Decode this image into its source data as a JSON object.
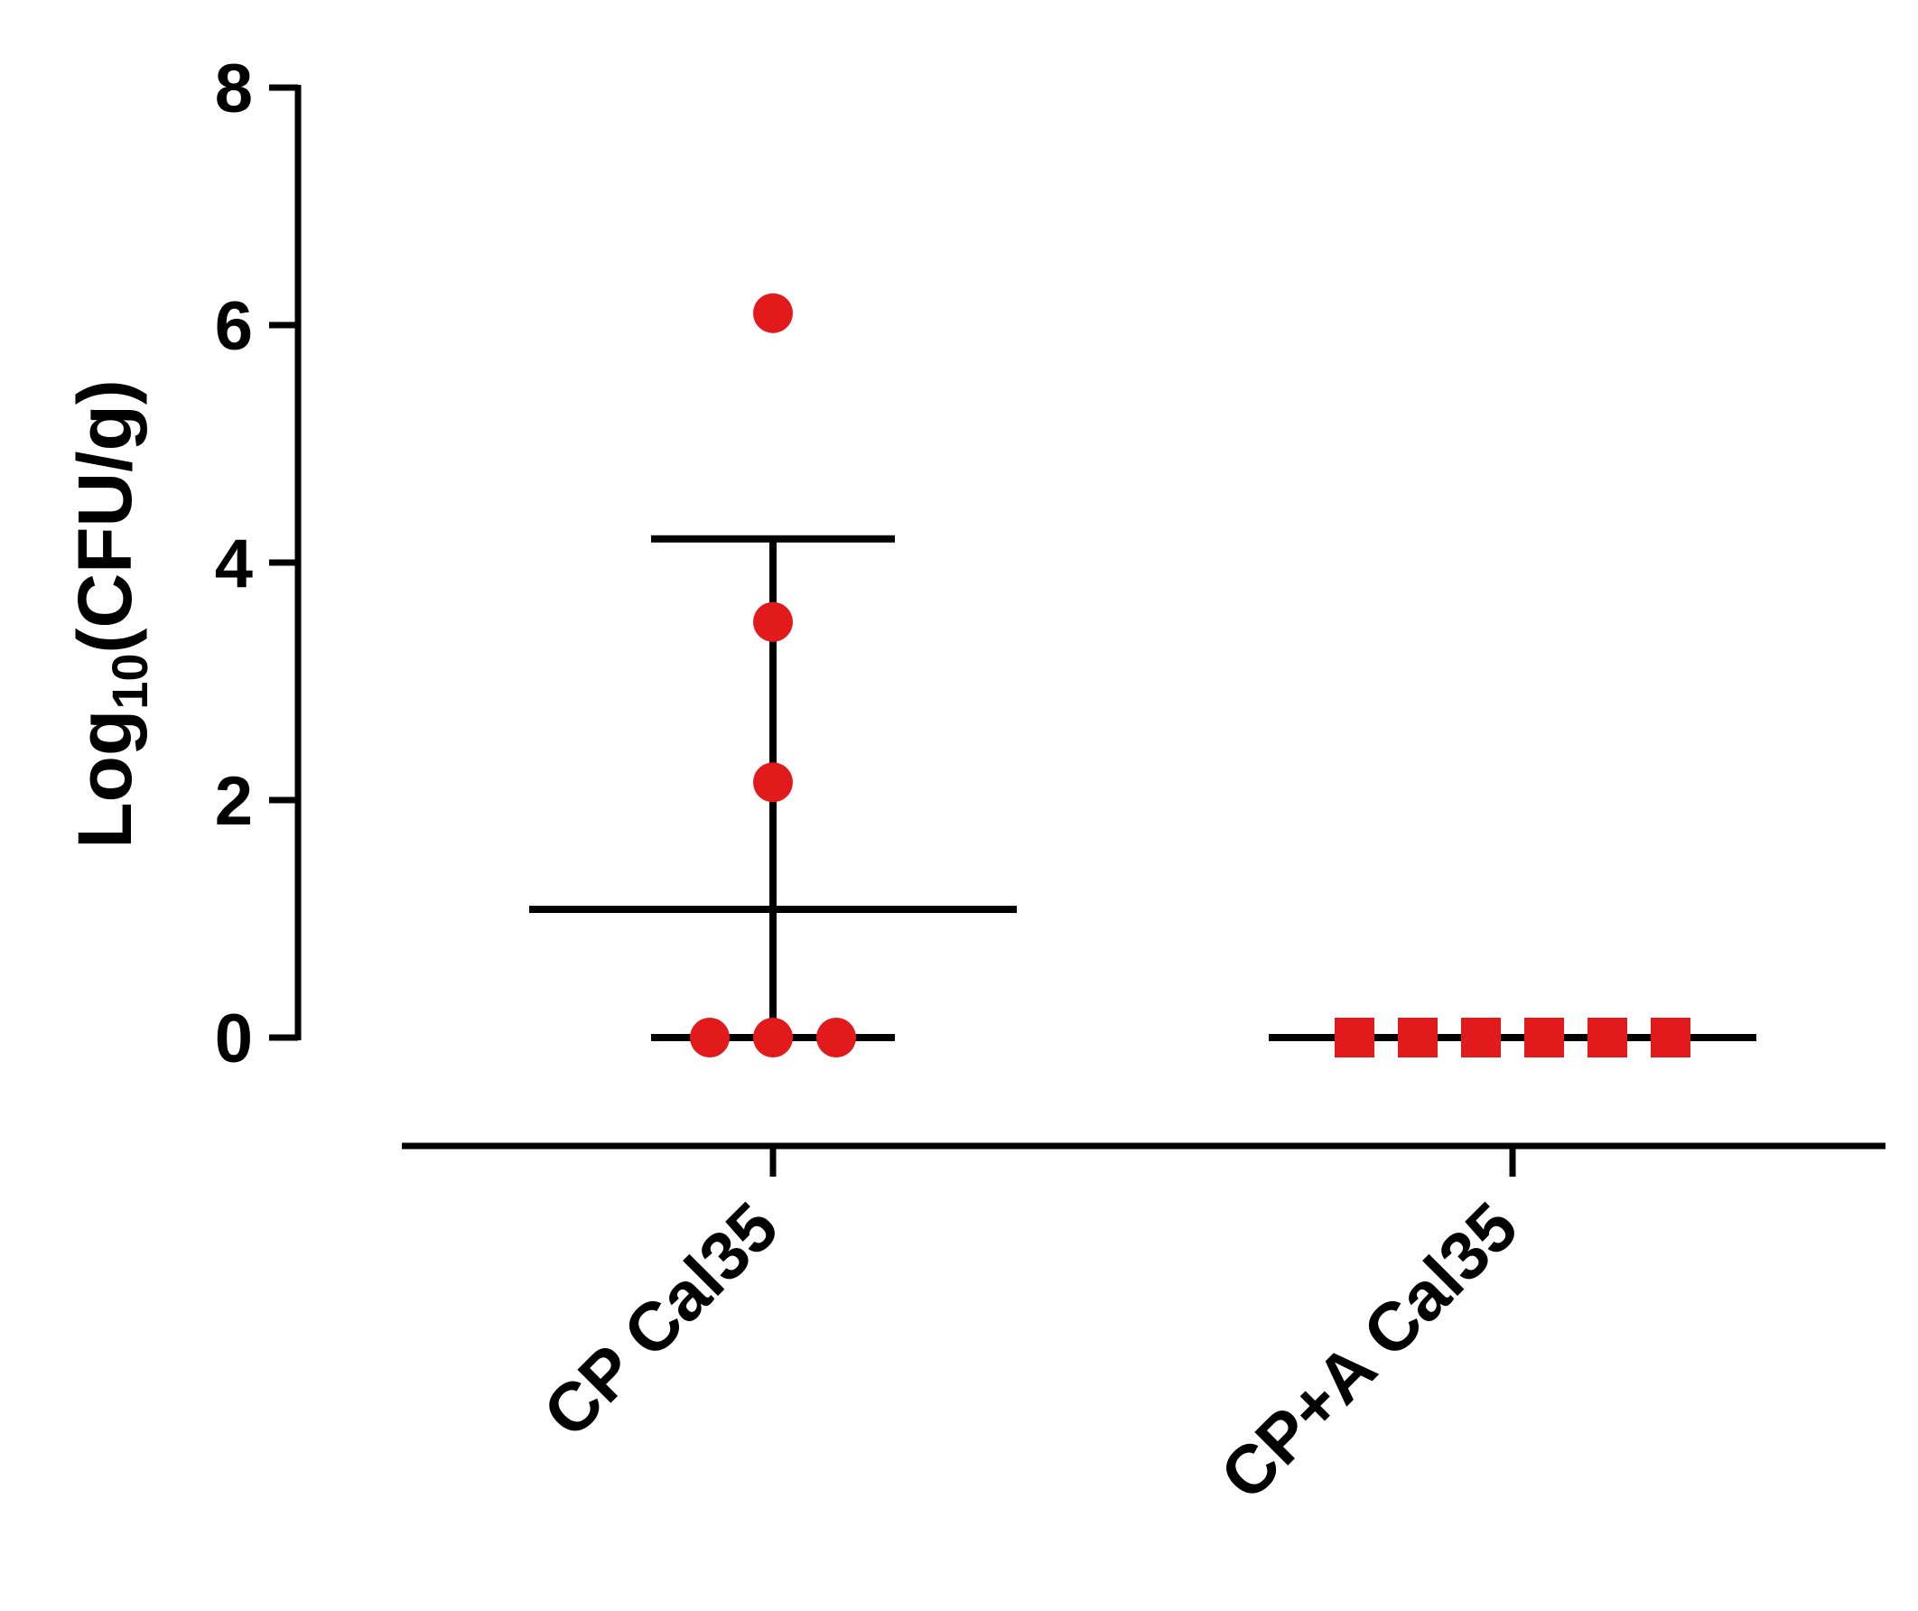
{
  "chart_data": {
    "type": "scatter",
    "ylabel": {
      "prefix": "Log",
      "subscript": "10",
      "suffix": "(CFU/g)"
    },
    "ylim": [
      0,
      8
    ],
    "yticks": [
      0,
      2,
      4,
      6,
      8
    ],
    "categories": [
      "CP Cal35",
      "CP+A Cal35"
    ],
    "groups": [
      {
        "category": "CP Cal35",
        "marker": "circle",
        "color": "#e31a1c",
        "points": [
          {
            "y": 6.1,
            "offset": 0
          },
          {
            "y": 3.5,
            "offset": 0
          },
          {
            "y": 2.15,
            "offset": 0
          },
          {
            "y": 0,
            "offset": -1
          },
          {
            "y": 0,
            "offset": 0
          },
          {
            "y": 0,
            "offset": 1
          }
        ],
        "mean": 1.08,
        "error_upper": 4.2,
        "error_lower": 0
      },
      {
        "category": "CP+A Cal35",
        "marker": "square",
        "color": "#e31a1c",
        "points": [
          {
            "y": 0,
            "offset": -2.5
          },
          {
            "y": 0,
            "offset": -1.5
          },
          {
            "y": 0,
            "offset": -0.5
          },
          {
            "y": 0,
            "offset": 0.5
          },
          {
            "y": 0,
            "offset": 1.5
          },
          {
            "y": 0,
            "offset": 2.5
          }
        ],
        "mean": 0,
        "error_upper": 0,
        "error_lower": 0
      }
    ]
  }
}
